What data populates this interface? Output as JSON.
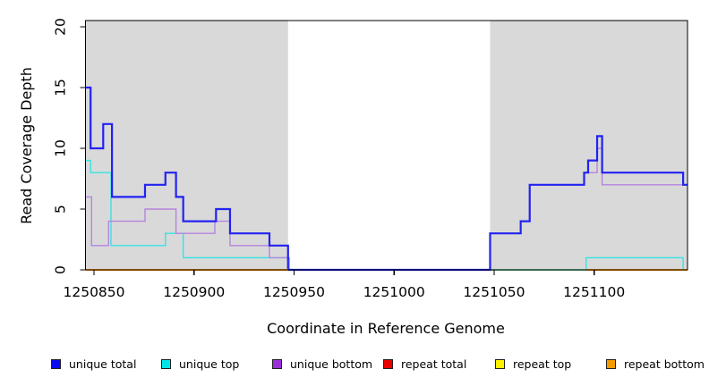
{
  "figure": {
    "xlabel": "Coordinate in Reference Genome",
    "ylabel": "Read Coverage Depth"
  },
  "legend": {
    "items": [
      {
        "label": "unique total",
        "color": "#0a0af0"
      },
      {
        "label": "unique top",
        "color": "#00e6e6"
      },
      {
        "label": "unique bottom",
        "color": "#9b2fd6"
      },
      {
        "label": "repeat total",
        "color": "#e80000"
      },
      {
        "label": "repeat top",
        "color": "#fff200"
      },
      {
        "label": "repeat bottom",
        "color": "#f59b00"
      }
    ]
  },
  "chart_data": {
    "type": "line",
    "step": true,
    "title": "",
    "xlabel": "Coordinate in Reference Genome",
    "ylabel": "Read Coverage Depth",
    "xlim": [
      1250845.8,
      1251146.7
    ],
    "ylim": [
      0,
      20
    ],
    "x_ticks": [
      1250850,
      1250900,
      1250950,
      1251000,
      1251050,
      1251100
    ],
    "y_ticks": [
      0,
      5,
      10,
      15,
      20
    ],
    "grid": false,
    "legend_position": "bottom",
    "shade_color": "#d9d9d9",
    "shaded_regions": [
      {
        "from": 1250845.8,
        "to": 1250947.0
      },
      {
        "from": 1251048.0,
        "to": 1251146.7
      }
    ],
    "series": [
      {
        "name": "repeat total",
        "color": "#e60000",
        "line_width": 1.4,
        "segments": [
          [
            [
              1250845.8,
              0
            ],
            [
              1250947,
              0
            ]
          ],
          [
            [
              1251048,
              0
            ],
            [
              1251146.7,
              0
            ]
          ]
        ]
      },
      {
        "name": "repeat top",
        "color": "#ffee00",
        "line_width": 1.4,
        "segments": [
          [
            [
              1250845.8,
              0
            ],
            [
              1250947,
              0
            ]
          ],
          [
            [
              1251048,
              0
            ],
            [
              1251146.7,
              0
            ]
          ]
        ]
      },
      {
        "name": "unique top",
        "color": "#38e2e2",
        "line_width": 1.4,
        "segments": [
          [
            [
              1250845.8,
              9
            ],
            [
              1250848.3,
              8
            ],
            [
              1250858.5,
              2
            ],
            [
              1250885.7,
              3
            ],
            [
              1250894.6,
              1
            ],
            [
              1250947.7,
              0
            ],
            [
              1251096,
              1
            ],
            [
              1251144.5,
              0
            ],
            [
              1251146.7,
              0
            ]
          ]
        ]
      },
      {
        "name": "unique bottom",
        "color": "#b584de",
        "line_width": 1.4,
        "segments": [
          [
            [
              1250845.8,
              6
            ],
            [
              1250848.8,
              2
            ],
            [
              1250857.3,
              4
            ],
            [
              1250875.5,
              5
            ],
            [
              1250891,
              3
            ],
            [
              1250910.4,
              4
            ],
            [
              1250918,
              2
            ],
            [
              1250937.7,
              1
            ],
            [
              1250947,
              0
            ],
            [
              1251048,
              3
            ],
            [
              1251063.3,
              4
            ],
            [
              1251067.8,
              7
            ],
            [
              1251095,
              8
            ],
            [
              1251101.5,
              10
            ],
            [
              1251104,
              7
            ],
            [
              1251146.7,
              7
            ]
          ]
        ]
      },
      {
        "name": "unique total",
        "color": "#2222f2",
        "line_width": 2.2,
        "segments": [
          [
            [
              1250845.8,
              15
            ],
            [
              1250848.3,
              10
            ],
            [
              1250854.6,
              12
            ],
            [
              1250859,
              6
            ],
            [
              1250875.5,
              7
            ],
            [
              1250885.7,
              8
            ],
            [
              1250891,
              6
            ],
            [
              1250894.6,
              4
            ],
            [
              1250911,
              5
            ],
            [
              1250918,
              3
            ],
            [
              1250937.7,
              2
            ],
            [
              1250947,
              0
            ],
            [
              1251048,
              3
            ],
            [
              1251063.3,
              4
            ],
            [
              1251067.8,
              7
            ],
            [
              1251095,
              8
            ],
            [
              1251097,
              9
            ],
            [
              1251101.5,
              11
            ],
            [
              1251104,
              8
            ],
            [
              1251144.5,
              7
            ],
            [
              1251146.7,
              7
            ]
          ]
        ]
      },
      {
        "name": "repeat bottom",
        "color": "#ff9500",
        "line_width": 2,
        "segments": [
          [
            [
              1250845.8,
              0
            ],
            [
              1250947,
              0
            ]
          ],
          [
            [
              1251096,
              0
            ],
            [
              1251146.7,
              0
            ]
          ]
        ]
      }
    ],
    "overlap_artifacts": [
      {
        "note": "cyan-over-yellow blend on zero line",
        "from": 1251048,
        "to": 1251096,
        "value": 0,
        "color": "#7ccf9e",
        "line_width": 1.4
      }
    ]
  }
}
